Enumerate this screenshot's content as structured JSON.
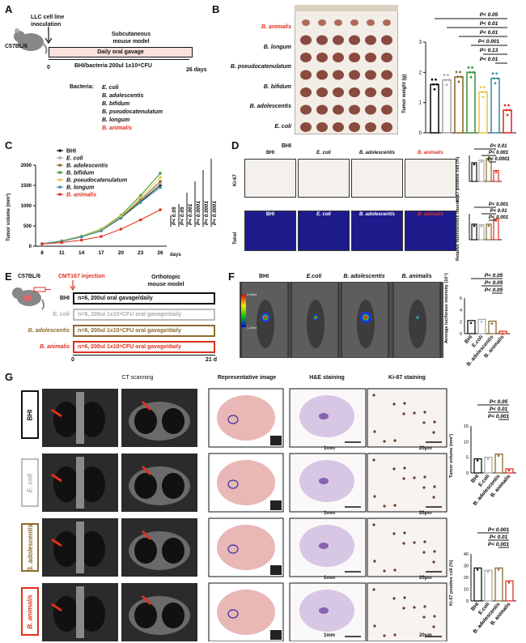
{
  "panels": {
    "A": {
      "letter": "A",
      "mouse": "C57BL/6",
      "inoculation": "LLC cell line\ninoculation",
      "model": "Subcutaneous\nmouse model",
      "gavage": "Daily oral gavage",
      "dose": "BHI/bacteria 200ul 1x10⁸CFU",
      "start": "0",
      "end": "26 days",
      "bacteria_label": "Bacteria:",
      "bacteria": [
        "E. coli",
        "B. adolescentis",
        "B. bifidum",
        "B. pseudocatenulatum",
        "B. longum",
        "B. animalis"
      ]
    },
    "B": {
      "letter": "B",
      "rows": [
        "B. animalis",
        "B. longum",
        "B. pseudocatenulatum",
        "B. bifidum",
        "B. adolescentis",
        "E. coli",
        "BHI"
      ],
      "ylabel": "Tumor weight (g)",
      "yticks": [
        "0",
        "1",
        "2",
        "3"
      ],
      "pvals": [
        "P< 0.05",
        "P< 0.01",
        "P< 0.01",
        "P< 0.001",
        "P= 0.13",
        "P< 0.01"
      ]
    },
    "C": {
      "letter": "C",
      "ylabel": "Tumor volume (mm³)",
      "xlabel": "days",
      "pvals": [
        "P< 0.05",
        "P< 0.05",
        "P< 0.001",
        "P< 0.0001",
        "P< 0.0001",
        "P< 0.0001"
      ]
    },
    "D": {
      "letter": "D",
      "cols": [
        "BHI",
        "E. coli",
        "B. adolescentis",
        "B. animalis"
      ],
      "row1": "Ki-67",
      "row2": "Tunel",
      "ylabel1": "Ki-67 positive cell (%)",
      "ylabel2": "Relative fluorescence intensity",
      "pvals1": [
        "P< 0.01",
        "P< 0.001",
        "P< 0.0001"
      ],
      "pvals2": [
        "P< 0.001",
        "P< 0.01",
        "P< 0.001"
      ]
    },
    "E": {
      "letter": "E",
      "mouse": "C57BL/6",
      "injection": "CMT167 injection",
      "model": "Orthotopic\nmouse model",
      "groups": [
        {
          "name": "BHI",
          "text": "n=6, 200ul oral gavage/daily"
        },
        {
          "name": "E. coli",
          "text": "n=6, 200ul 1x10⁸CFU oral gavage/daily"
        },
        {
          "name": "B. adolescentis",
          "text": "n=6, 200ul 1x10⁸CFU oral gavage/daily"
        },
        {
          "name": "B. animalis",
          "text": "n=6, 200ul 1x10⁸CFU oral gavage/daily"
        }
      ],
      "start": "0",
      "end": "21 d"
    },
    "F": {
      "letter": "F",
      "cols": [
        "BHI",
        "E.coli",
        "B. adolescentis",
        "B. animalis"
      ],
      "scale_top": "3.04e4",
      "scale_bottom": "1.24e4",
      "ylabel": "Average luciferase intensity (10⁴)",
      "xcats": [
        "BHI",
        "E.coli",
        "B. adolescentis",
        "B. animalis"
      ],
      "pvals": [
        "P< 0.05",
        "P< 0.05",
        "P< 0.05"
      ]
    },
    "G": {
      "letter": "G",
      "headers": [
        "CT scanning",
        "Representative image",
        "H&E staining",
        "Ki-67 staining"
      ],
      "rows": [
        "BHI",
        "E. coli",
        "B. adolescentis",
        "B. animalis"
      ],
      "he_scale": "1mm",
      "ki_scale": "20μm",
      "chart1_ylabel": "Tumor volume (mm³)",
      "chart2_ylabel": "Ki-67 positive cell (%)",
      "xcats": [
        "BHI",
        "E.coli",
        "B. adolescentis",
        "B. animalis"
      ],
      "pvals1": [
        "P< 0.05",
        "P< 0.01",
        "P< 0.001"
      ],
      "pvals2": [
        "P< 0.001",
        "P< 0.01",
        "P< 0.001"
      ]
    }
  },
  "chart_data": [
    {
      "type": "bar",
      "ylabel": "Tumor weight (g)",
      "ylim": [
        0,
        3
      ],
      "colors": [
        "#111111",
        "#aaaaaa",
        "#8b6b2e",
        "#3b9a3b",
        "#e8c84a",
        "#3b8fa8",
        "#e0301e"
      ],
      "values": [
        1.6,
        1.75,
        1.85,
        2.0,
        1.35,
        1.8,
        0.75
      ]
    },
    {
      "type": "line",
      "xlabel": "days",
      "x": [
        8,
        11,
        14,
        17,
        20,
        23,
        26
      ],
      "ylim": [
        0,
        2000
      ],
      "yticks": [
        0,
        500,
        1000,
        1500,
        2000
      ],
      "series": [
        {
          "name": "BHI",
          "color": "#111111",
          "values": [
            60,
            120,
            230,
            380,
            700,
            1100,
            1500
          ]
        },
        {
          "name": "E. coli",
          "color": "#aaaaaa",
          "values": [
            60,
            130,
            240,
            400,
            720,
            1120,
            1550
          ]
        },
        {
          "name": "B. adolescentis",
          "color": "#8b6b2e",
          "values": [
            60,
            125,
            235,
            390,
            710,
            1150,
            1600
          ]
        },
        {
          "name": "B. bifidum",
          "color": "#3b9a3b",
          "values": [
            60,
            135,
            250,
            420,
            760,
            1250,
            1800
          ]
        },
        {
          "name": "B. pseudocatenulatum",
          "color": "#e8c84a",
          "values": [
            60,
            130,
            240,
            410,
            740,
            1200,
            1700
          ]
        },
        {
          "name": "B. longum",
          "color": "#3b8fa8",
          "values": [
            60,
            120,
            230,
            380,
            690,
            1080,
            1450
          ]
        },
        {
          "name": "B. animalis",
          "color": "#e0301e",
          "values": [
            55,
            90,
            150,
            240,
            420,
            650,
            900
          ]
        }
      ]
    }
  ]
}
